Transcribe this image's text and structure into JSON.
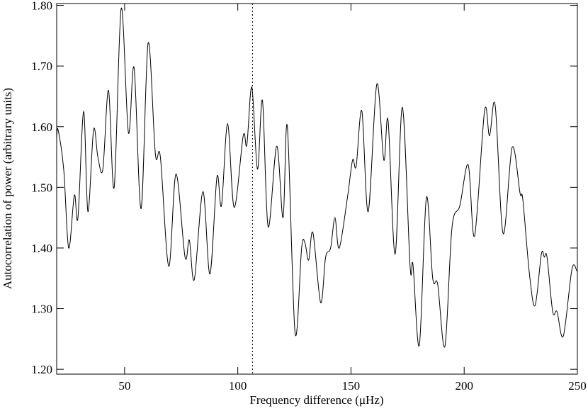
{
  "chart_data": {
    "type": "line",
    "xlabel": "Frequency difference (μHz)",
    "ylabel": "Autocorrelation of power (arbitrary units)",
    "xlim": [
      20,
      250
    ],
    "ylim": [
      1.192,
      1.803
    ],
    "xticks": [
      50,
      100,
      150,
      200,
      250
    ],
    "yticks": [
      {
        "value": 1.2,
        "label": "1.20"
      },
      {
        "value": 1.3,
        "label": "1.30"
      },
      {
        "value": 1.4,
        "label": "1.40"
      },
      {
        "value": 1.5,
        "label": "1.50"
      },
      {
        "value": 1.6,
        "label": "1.60"
      },
      {
        "value": 1.7,
        "label": "1.70"
      },
      {
        "value": 1.8,
        "label": "1.80"
      }
    ],
    "vline": 106.5,
    "color": "#000000",
    "x": [
      20,
      20.6,
      23.1,
      25.3,
      27.8,
      29.4,
      31.9,
      33.8,
      36.3,
      38.2,
      40.4,
      42.9,
      45.4,
      48.5,
      51.7,
      54.2,
      57.3,
      60.4,
      63.6,
      65.8,
      69.5,
      72.7,
      76.7,
      78.6,
      80.8,
      84.6,
      87.7,
      90.8,
      92.8,
      95.5,
      98.4,
      102.4,
      104,
      106.2,
      108.7,
      110.9,
      113.4,
      117.2,
      120,
      121.9,
      125.3,
      128.2,
      129.7,
      131.3,
      133.2,
      136.6,
      138.8,
      141,
      142.9,
      144.8,
      148.5,
      150.7,
      152.3,
      154.8,
      157.6,
      161.4,
      164.5,
      166.4,
      169.5,
      172.7,
      176.1,
      177.4,
      180.2,
      183.3,
      186.1,
      188.3,
      191.5,
      194.6,
      198.1,
      201.8,
      204.6,
      209,
      211.2,
      213.7,
      217.2,
      221.2,
      224.7,
      225.9,
      228.8,
      231.3,
      234.1,
      235.4,
      236.6,
      239.1,
      241,
      243.8,
      247.6,
      249.8
    ],
    "values": [
      1.58,
      1.595,
      1.53,
      1.4,
      1.487,
      1.45,
      1.625,
      1.46,
      1.595,
      1.55,
      1.53,
      1.66,
      1.5,
      1.795,
      1.59,
      1.697,
      1.465,
      1.738,
      1.555,
      1.55,
      1.37,
      1.522,
      1.385,
      1.413,
      1.348,
      1.493,
      1.357,
      1.517,
      1.47,
      1.605,
      1.467,
      1.585,
      1.57,
      1.665,
      1.53,
      1.643,
      1.435,
      1.568,
      1.45,
      1.6,
      1.26,
      1.4,
      1.408,
      1.38,
      1.425,
      1.31,
      1.385,
      1.4,
      1.45,
      1.4,
      1.485,
      1.545,
      1.535,
      1.626,
      1.46,
      1.67,
      1.545,
      1.61,
      1.39,
      1.632,
      1.37,
      1.372,
      1.24,
      1.483,
      1.35,
      1.34,
      1.238,
      1.433,
      1.47,
      1.537,
      1.42,
      1.626,
      1.585,
      1.635,
      1.424,
      1.566,
      1.49,
      1.48,
      1.358,
      1.305,
      1.39,
      1.385,
      1.385,
      1.295,
      1.295,
      1.255,
      1.365,
      1.362
    ]
  }
}
